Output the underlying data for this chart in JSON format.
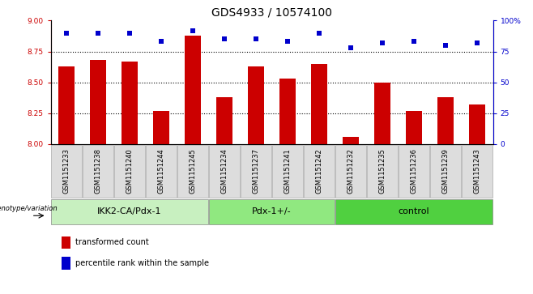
{
  "title": "GDS4933 / 10574100",
  "samples": [
    "GSM1151233",
    "GSM1151238",
    "GSM1151240",
    "GSM1151244",
    "GSM1151245",
    "GSM1151234",
    "GSM1151237",
    "GSM1151241",
    "GSM1151242",
    "GSM1151232",
    "GSM1151235",
    "GSM1151236",
    "GSM1151239",
    "GSM1151243"
  ],
  "bar_values": [
    8.63,
    8.68,
    8.67,
    8.27,
    8.88,
    8.38,
    8.63,
    8.53,
    8.65,
    8.06,
    8.5,
    8.27,
    8.38,
    8.32
  ],
  "dot_values": [
    90,
    90,
    90,
    83,
    92,
    85,
    85,
    83,
    90,
    78,
    82,
    83,
    80,
    82
  ],
  "bar_color": "#CC0000",
  "dot_color": "#0000CC",
  "bar_baseline": 8.0,
  "ylim_left": [
    8.0,
    9.0
  ],
  "ylim_right": [
    0,
    100
  ],
  "yticks_left": [
    8.0,
    8.25,
    8.5,
    8.75,
    9.0
  ],
  "yticks_right": [
    0,
    25,
    50,
    75,
    100
  ],
  "ytick_labels_right": [
    "0",
    "25",
    "50",
    "75",
    "100%"
  ],
  "grid_values": [
    8.25,
    8.5,
    8.75
  ],
  "groups": [
    {
      "label": "IKK2-CA/Pdx-1",
      "start": 0,
      "end": 5,
      "color": "#c8f0c0"
    },
    {
      "label": "Pdx-1+/-",
      "start": 5,
      "end": 9,
      "color": "#90e880"
    },
    {
      "label": "control",
      "start": 9,
      "end": 14,
      "color": "#50d040"
    }
  ],
  "group_label_text": "genotype/variation",
  "legend_items": [
    {
      "label": "transformed count",
      "color": "#CC0000"
    },
    {
      "label": "percentile rank within the sample",
      "color": "#0000CC"
    }
  ],
  "title_fontsize": 10,
  "tick_fontsize": 6.5,
  "sample_fontsize": 6,
  "group_fontsize": 8
}
